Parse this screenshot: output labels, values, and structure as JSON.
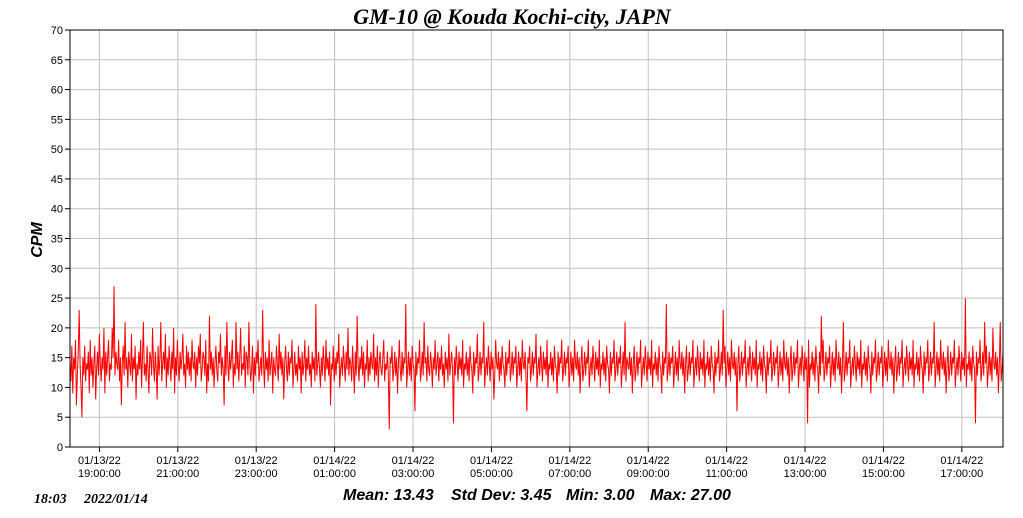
{
  "chart_data": {
    "type": "line",
    "title": "GM-10 @ Kouda Kochi-city, JAPN",
    "ylabel": "CPM",
    "xlabel": "",
    "ylim": [
      0,
      70
    ],
    "yticks": [
      0,
      5,
      10,
      15,
      20,
      25,
      30,
      35,
      40,
      45,
      50,
      55,
      60,
      65,
      70
    ],
    "x_range": [
      "01/13/22 18:15:00",
      "01/14/22 18:03:00"
    ],
    "x_ticks": [
      {
        "date": "01/13/22",
        "time": "19:00:00"
      },
      {
        "date": "01/13/22",
        "time": "21:00:00"
      },
      {
        "date": "01/13/22",
        "time": "23:00:00"
      },
      {
        "date": "01/14/22",
        "time": "01:00:00"
      },
      {
        "date": "01/14/22",
        "time": "03:00:00"
      },
      {
        "date": "01/14/22",
        "time": "05:00:00"
      },
      {
        "date": "01/14/22",
        "time": "07:00:00"
      },
      {
        "date": "01/14/22",
        "time": "09:00:00"
      },
      {
        "date": "01/14/22",
        "time": "11:00:00"
      },
      {
        "date": "01/14/22",
        "time": "13:00:00"
      },
      {
        "date": "01/14/22",
        "time": "15:00:00"
      },
      {
        "date": "01/14/22",
        "time": "17:00:00"
      }
    ],
    "grid": true,
    "series": [
      {
        "color": "#ff0000",
        "values": [
          14,
          11,
          17,
          9,
          15,
          13,
          18,
          7,
          12,
          16,
          23,
          14,
          10,
          5,
          15,
          12,
          17,
          11,
          14,
          13,
          16,
          9,
          18,
          12,
          15,
          10,
          14,
          17,
          8,
          13,
          16,
          12,
          19,
          14,
          11,
          15,
          13,
          20,
          9,
          16,
          12,
          15,
          18,
          11,
          14,
          13,
          20,
          15,
          27,
          12,
          16,
          14,
          13,
          18,
          11,
          15,
          7,
          14,
          17,
          12,
          21,
          13,
          15,
          10,
          16,
          14,
          12,
          19,
          11,
          15,
          13,
          17,
          8,
          14,
          12,
          16,
          13,
          18,
          10,
          15,
          21,
          12,
          14,
          11,
          17,
          13,
          9,
          16,
          15,
          12,
          20,
          14,
          11,
          16,
          13,
          8,
          17,
          12,
          15,
          21,
          11,
          14,
          16,
          13,
          19,
          10,
          15,
          12,
          17,
          14,
          11,
          16,
          13,
          20,
          9,
          15,
          12,
          18,
          14,
          11,
          16,
          13,
          15,
          19,
          12,
          14,
          10,
          17,
          13,
          16,
          12,
          15,
          11,
          18,
          14,
          13,
          16,
          10,
          15,
          12,
          17,
          14,
          19,
          11,
          13,
          16,
          15,
          12,
          18,
          9,
          14,
          11,
          22,
          13,
          16,
          12,
          15,
          10,
          14,
          17,
          13,
          11,
          16,
          14,
          19,
          12,
          15,
          13,
          7,
          17,
          12,
          21,
          14,
          11,
          16,
          13,
          15,
          18,
          10,
          14,
          12,
          21,
          13,
          16,
          11,
          15,
          20,
          12,
          14,
          13,
          17,
          10,
          16,
          15,
          12,
          21,
          14,
          11,
          13,
          17,
          9,
          15,
          12,
          16,
          14,
          18,
          11,
          13,
          15,
          12,
          23,
          14,
          10,
          16,
          13,
          15,
          11,
          18,
          12,
          14,
          16,
          9,
          15,
          13,
          12,
          17,
          14,
          11,
          19,
          13,
          16,
          12,
          15,
          8,
          14,
          17,
          13,
          11,
          16,
          12,
          15,
          14,
          18,
          10,
          13,
          16,
          12,
          14,
          11,
          17,
          13,
          15,
          9,
          16,
          12,
          14,
          18,
          11,
          15,
          13,
          17,
          12,
          14,
          10,
          16,
          13,
          15,
          11,
          24,
          12,
          14,
          16,
          13,
          10,
          15,
          12,
          17,
          14,
          11,
          18,
          13,
          15,
          12,
          16,
          7,
          14,
          13,
          17,
          11,
          15,
          12,
          16,
          14,
          19,
          10,
          13,
          15,
          12,
          17,
          14,
          11,
          16,
          13,
          20,
          12,
          15,
          14,
          11,
          17,
          13,
          9,
          16,
          12,
          22,
          14,
          11,
          15,
          13,
          17,
          12,
          16,
          10,
          14,
          13,
          18,
          11,
          15,
          12,
          16,
          14,
          13,
          19,
          11,
          15,
          12,
          17,
          10,
          14,
          16,
          13,
          12,
          15,
          18,
          11,
          14,
          13,
          16,
          12,
          3,
          15,
          14,
          17,
          11,
          13,
          16,
          12,
          15,
          9,
          14,
          18,
          13,
          11,
          16,
          12,
          15,
          14,
          24,
          10,
          13,
          16,
          12,
          15,
          11,
          17,
          14,
          13,
          6,
          16,
          12,
          15,
          14,
          18,
          11,
          13,
          16,
          12,
          21,
          14,
          15,
          11,
          17,
          13,
          12,
          16,
          14,
          10,
          15,
          13,
          18,
          12,
          14,
          16,
          11,
          15,
          13,
          17,
          12,
          14,
          10,
          16,
          13,
          15,
          11,
          19,
          12,
          14,
          16,
          13,
          4,
          15,
          12,
          17,
          14,
          11,
          16,
          13,
          15,
          12,
          18,
          10,
          14,
          13,
          16,
          12,
          15,
          11,
          17,
          14,
          13,
          9,
          16,
          12,
          15,
          14,
          19,
          11,
          13,
          16,
          12,
          15,
          14,
          21,
          10,
          13,
          15,
          12,
          17,
          14,
          11,
          16,
          13,
          15,
          8,
          12,
          18,
          14,
          13,
          16,
          11,
          15,
          12,
          17,
          14,
          13,
          10,
          16,
          12,
          15,
          14,
          18,
          11,
          13,
          16,
          12,
          15,
          14,
          17,
          10,
          13,
          16,
          12,
          15,
          11,
          18,
          14,
          13,
          16,
          12,
          6,
          15,
          14,
          17,
          11,
          13,
          16,
          12,
          15,
          14,
          19,
          10,
          13,
          15,
          12,
          17,
          14,
          11,
          16,
          13,
          15,
          12,
          18,
          10,
          14,
          13,
          16,
          12,
          15,
          11,
          17,
          14,
          13,
          9,
          16,
          12,
          15,
          14,
          18,
          11,
          13,
          16,
          12,
          15,
          14,
          17,
          10,
          13,
          16,
          12,
          15,
          11,
          18,
          14,
          13,
          16,
          12,
          15,
          9,
          14,
          17,
          11,
          13,
          16,
          12,
          15,
          14,
          18,
          10,
          13,
          15,
          12,
          17,
          14,
          11,
          16,
          13,
          15,
          12,
          18,
          10,
          14,
          13,
          16,
          12,
          15,
          11,
          17,
          14,
          13,
          9,
          16,
          12,
          15,
          14,
          18,
          11,
          13,
          16,
          12,
          15,
          14,
          17,
          10,
          13,
          16,
          12,
          21,
          11,
          15,
          14,
          13,
          16,
          12,
          15,
          9,
          14,
          17,
          11,
          13,
          16,
          12,
          15,
          14,
          18,
          10,
          13,
          15,
          12,
          17,
          14,
          11,
          16,
          13,
          15,
          12,
          18,
          10,
          14,
          13,
          16,
          12,
          15,
          11,
          17,
          14,
          13,
          9,
          16,
          12,
          15,
          14,
          24,
          11,
          13,
          16,
          12,
          15,
          14,
          17,
          10,
          13,
          16,
          12,
          15,
          11,
          18,
          14,
          13,
          16,
          12,
          15,
          9,
          14,
          17,
          11,
          13,
          16,
          12,
          15,
          14,
          18,
          10,
          13,
          15,
          12,
          17,
          14,
          11,
          16,
          13,
          15,
          12,
          18,
          10,
          14,
          13,
          16,
          12,
          15,
          11,
          17,
          14,
          13,
          9,
          16,
          12,
          15,
          14,
          18,
          11,
          13,
          16,
          12,
          23,
          14,
          17,
          10,
          13,
          16,
          12,
          15,
          11,
          18,
          14,
          13,
          16,
          12,
          15,
          6,
          14,
          17,
          11,
          13,
          16,
          12,
          15,
          14,
          18,
          10,
          13,
          15,
          12,
          17,
          14,
          11,
          16,
          13,
          15,
          12,
          18,
          10,
          14,
          13,
          16,
          12,
          15,
          11,
          17,
          14,
          13,
          9,
          16,
          12,
          15,
          14,
          18,
          11,
          13,
          16,
          12,
          15,
          14,
          17,
          10,
          13,
          16,
          12,
          15,
          11,
          18,
          14,
          13,
          16,
          12,
          15,
          9,
          14,
          17,
          11,
          13,
          16,
          12,
          15,
          14,
          18,
          10,
          13,
          15,
          12,
          17,
          14,
          11,
          16,
          13,
          15,
          4,
          18,
          10,
          14,
          13,
          16,
          12,
          15,
          11,
          17,
          14,
          13,
          9,
          16,
          12,
          22,
          14,
          18,
          11,
          13,
          16,
          12,
          15,
          14,
          17,
          10,
          13,
          16,
          12,
          15,
          11,
          18,
          14,
          13,
          16,
          12,
          15,
          9,
          14,
          21,
          11,
          13,
          16,
          12,
          15,
          14,
          18,
          10,
          13,
          15,
          12,
          17,
          14,
          11,
          16,
          13,
          15,
          12,
          18,
          10,
          14,
          13,
          16,
          12,
          15,
          11,
          17,
          14,
          13,
          9,
          16,
          12,
          15,
          14,
          18,
          11,
          13,
          16,
          12,
          15,
          14,
          17,
          10,
          13,
          16,
          12,
          15,
          11,
          18,
          14,
          13,
          16,
          12,
          15,
          9,
          14,
          17,
          11,
          13,
          16,
          12,
          15,
          14,
          18,
          10,
          13,
          15,
          12,
          17,
          14,
          11,
          16,
          13,
          15,
          12,
          18,
          10,
          14,
          13,
          16,
          12,
          15,
          11,
          17,
          14,
          13,
          9,
          16,
          12,
          15,
          14,
          18,
          11,
          13,
          16,
          12,
          15,
          14,
          21,
          10,
          13,
          16,
          12,
          15,
          11,
          18,
          14,
          13,
          16,
          12,
          15,
          9,
          14,
          17,
          11,
          13,
          16,
          12,
          15,
          14,
          18,
          10,
          13,
          15,
          12,
          17,
          14,
          11,
          16,
          13,
          15,
          12,
          25,
          10,
          14,
          13,
          16,
          12,
          15,
          11,
          17,
          14,
          13,
          4,
          16,
          12,
          15,
          14,
          18,
          11,
          13,
          16,
          12,
          21,
          14,
          17,
          10,
          13,
          16,
          12,
          15,
          11,
          20,
          14,
          13,
          16,
          12,
          15,
          9,
          14,
          21,
          11,
          13,
          16
        ]
      },
      {
        "name": "Mean",
        "color": "#d4c24a",
        "values": [
          13.43
        ]
      }
    ],
    "stats": {
      "mean": "Mean: 13.43",
      "std": "Std Dev: 3.45",
      "min": "Min: 3.00",
      "max": "Max: 27.00"
    },
    "timestamp": {
      "time": "18:03",
      "date": "2022/01/14"
    }
  }
}
